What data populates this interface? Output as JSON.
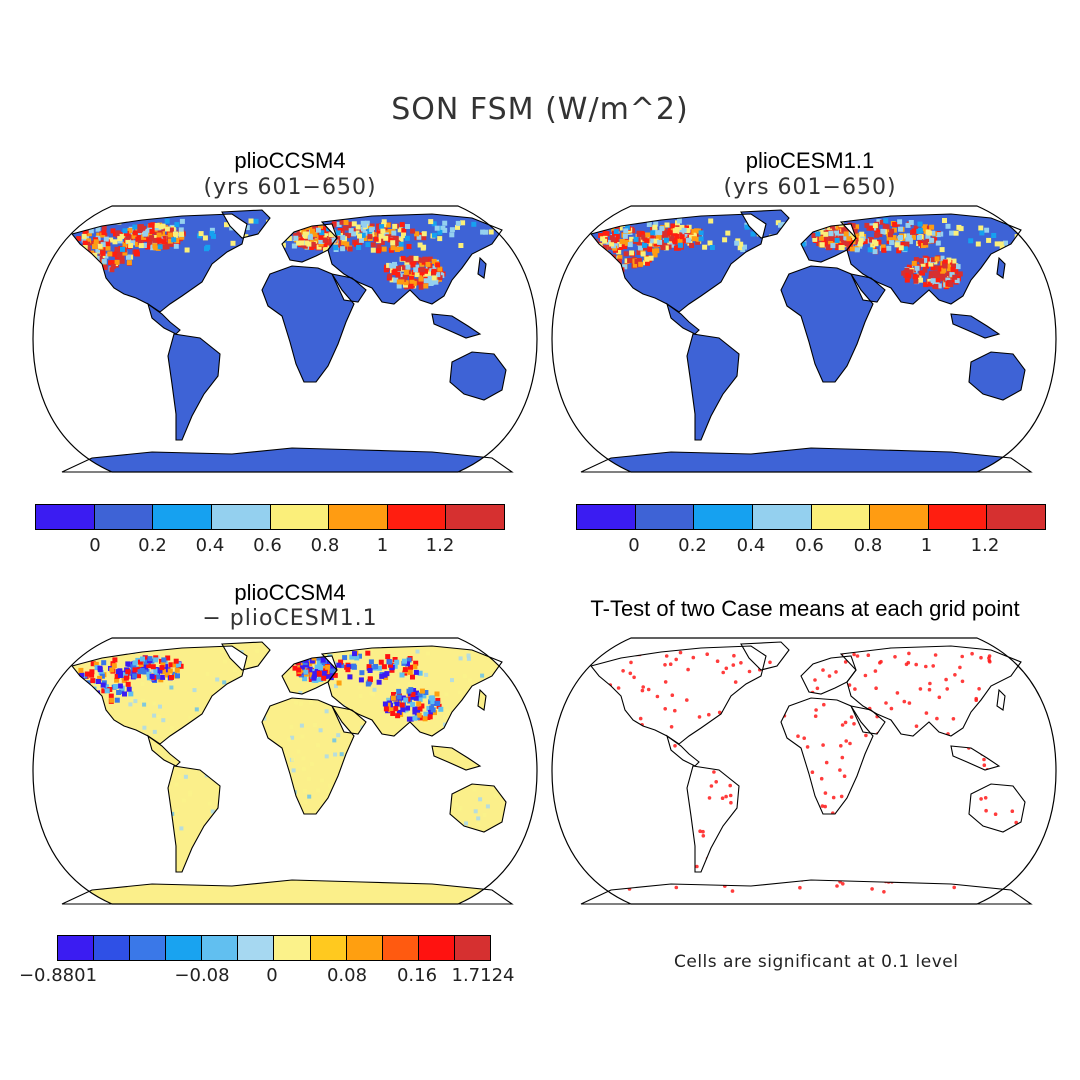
{
  "main_title": "SON FSM (W/m^2)",
  "panels": [
    {
      "id": "p1",
      "title": "plioCCSM4",
      "subtitle": "(yrs 601−650)",
      "land_color": "#3e63d6",
      "ocean_color": "#ffffff"
    },
    {
      "id": "p2",
      "title": "plioCESM1.1",
      "subtitle": "(yrs 601−650)",
      "land_color": "#3e63d6",
      "ocean_color": "#ffffff"
    },
    {
      "id": "p3",
      "title": "plioCCSM4",
      "subtitle": "− plioCESM1.1",
      "land_color": "#fbef8a",
      "ocean_color": "#ffffff"
    },
    {
      "id": "p4",
      "title": "T-Test of two Case means at each grid point",
      "subtitle": "",
      "land_color": "#ffffff",
      "ocean_color": "#ffffff",
      "dot_color": "#ff1a1a"
    }
  ],
  "colorbar_abs": {
    "colors": [
      "#3b1cf2",
      "#3e63d6",
      "#16a1f0",
      "#94d0ef",
      "#fbef7a",
      "#ff9c12",
      "#ff1e10",
      "#d63030"
    ],
    "ticks": [
      "0",
      "0.2",
      "0.4",
      "0.6",
      "0.8",
      "1",
      "1.2"
    ]
  },
  "colorbar_diff": {
    "colors": [
      "#3b1cf2",
      "#2f50e6",
      "#3a78e8",
      "#19a3f0",
      "#61bff0",
      "#a6d8f1",
      "#fbf28a",
      "#ffc91f",
      "#ff9f10",
      "#ff5a10",
      "#ff1210",
      "#d63030"
    ],
    "ticks": [
      "−0.8801",
      "−0.08",
      "0",
      "0.08",
      "0.16",
      "1.7124"
    ]
  },
  "note": "Cells are significant at 0.1 level"
}
